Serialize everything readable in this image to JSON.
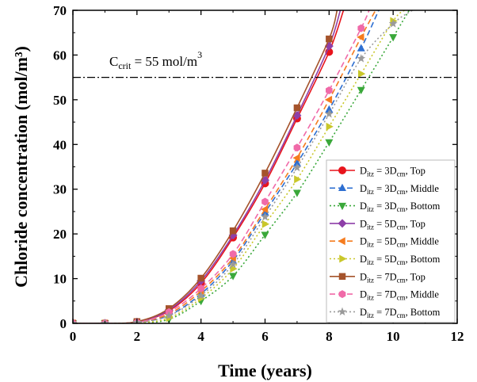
{
  "chart_data": {
    "type": "line",
    "xlabel": "Time (years)",
    "ylabel": "Chloride concentration (mol/m³)",
    "xlim": [
      0,
      12
    ],
    "ylim": [
      0,
      70
    ],
    "xticks": [
      0,
      2,
      4,
      6,
      8,
      10,
      12
    ],
    "yticks": [
      0,
      10,
      20,
      30,
      40,
      50,
      60,
      70
    ],
    "grid": false,
    "legend_position": "right-bottom",
    "reference_line": {
      "y": 55,
      "style": "dash-dot",
      "label": {
        "prefix": "C",
        "subscript": "crit",
        "rest": " = 55 mol/m",
        "superscript": "3"
      }
    },
    "series": [
      {
        "name": {
          "base": "D",
          "sub1": "itz",
          "mid": " = 3D",
          "sub2": "cm",
          "tail": ", Top"
        },
        "color": "#e8141c",
        "marker": "circle",
        "dash": "solid",
        "x": [
          0,
          1,
          2,
          3,
          4,
          5,
          6,
          7,
          8,
          8.45
        ],
        "y": [
          0,
          0,
          0.3,
          2.8,
          9.0,
          19.2,
          31.3,
          45.8,
          60.7,
          70
        ]
      },
      {
        "name": {
          "base": "D",
          "sub1": "itz",
          "mid": " = 3D",
          "sub2": "cm",
          "tail": ", Middle"
        },
        "color": "#2e6fd1",
        "marker": "triangle-up",
        "dash": "dashed",
        "x": [
          0,
          1,
          2,
          3,
          4,
          5,
          6,
          7,
          8,
          9,
          9.55
        ],
        "y": [
          0,
          0,
          0.2,
          1.8,
          6.6,
          14.0,
          24.8,
          35.8,
          47.8,
          61.5,
          70
        ]
      },
      {
        "name": {
          "base": "D",
          "sub1": "itz",
          "mid": " = 3D",
          "sub2": "cm",
          "tail": ", Bottom"
        },
        "color": "#3aa83a",
        "marker": "triangle-down",
        "dash": "dotted",
        "x": [
          0,
          1,
          2,
          3,
          4,
          5,
          6,
          7,
          8,
          9,
          10,
          10.5
        ],
        "y": [
          0,
          0,
          0.1,
          0.9,
          5.0,
          10.6,
          19.8,
          29.2,
          40.5,
          52.2,
          64.0,
          70
        ]
      },
      {
        "name": {
          "base": "D",
          "sub1": "itz",
          "mid": " = 5D",
          "sub2": "cm",
          "tail": ", Top"
        },
        "color": "#8e3fa8",
        "marker": "diamond",
        "dash": "solid",
        "x": [
          0,
          1,
          2,
          3,
          4,
          5,
          6,
          7,
          8,
          8.35
        ],
        "y": [
          0,
          0,
          0.3,
          3.0,
          9.5,
          19.7,
          32.0,
          46.5,
          62.0,
          70
        ]
      },
      {
        "name": {
          "base": "D",
          "sub1": "itz",
          "mid": " = 5D",
          "sub2": "cm",
          "tail": ", Middle"
        },
        "color": "#f57c1f",
        "marker": "triangle-left",
        "dash": "dashed",
        "x": [
          0,
          1,
          2,
          3,
          4,
          5,
          6,
          7,
          8,
          9,
          9.45
        ],
        "y": [
          0,
          0,
          0.2,
          2.1,
          7.2,
          14.6,
          25.5,
          37.0,
          50.0,
          64.0,
          70
        ]
      },
      {
        "name": {
          "base": "D",
          "sub1": "itz",
          "mid": " = 5D",
          "sub2": "cm",
          "tail": ", Bottom"
        },
        "color": "#c9c72a",
        "marker": "triangle-right",
        "dash": "dotted",
        "x": [
          0,
          1,
          2,
          3,
          4,
          5,
          6,
          7,
          8,
          9,
          10,
          10.35
        ],
        "y": [
          0,
          0,
          0.1,
          1.2,
          5.6,
          12.2,
          22.2,
          32.2,
          44.0,
          55.8,
          67.6,
          70
        ]
      },
      {
        "name": {
          "base": "D",
          "sub1": "itz",
          "mid": " = 7D",
          "sub2": "cm",
          "tail": ", Top"
        },
        "color": "#a5532b",
        "marker": "square",
        "dash": "solid",
        "x": [
          0,
          1,
          2,
          3,
          4,
          5,
          6,
          7,
          8,
          8.25
        ],
        "y": [
          0,
          0,
          0.4,
          3.3,
          10.1,
          20.7,
          33.6,
          48.2,
          63.6,
          70
        ]
      },
      {
        "name": {
          "base": "D",
          "sub1": "itz",
          "mid": " = 7D",
          "sub2": "cm",
          "tail": ", Middle"
        },
        "color": "#f06aa8",
        "marker": "hexagon",
        "dash": "dashed",
        "x": [
          0,
          1,
          2,
          3,
          4,
          5,
          6,
          7,
          8,
          9,
          9.25
        ],
        "y": [
          0,
          0,
          0.2,
          2.5,
          7.8,
          15.5,
          27.2,
          39.3,
          52.1,
          66.0,
          70
        ]
      },
      {
        "name": {
          "base": "D",
          "sub1": "itz",
          "mid": " = 7D",
          "sub2": "cm",
          "tail": ", Bottom"
        },
        "color": "#9a9a9a",
        "marker": "star",
        "dash": "dotted",
        "x": [
          0,
          1,
          2,
          3,
          4,
          5,
          6,
          7,
          8,
          9,
          10,
          10.6
        ],
        "y": [
          0,
          0,
          0.2,
          1.7,
          6.2,
          13.2,
          23.8,
          34.8,
          46.8,
          59.2,
          67.0,
          70
        ]
      }
    ]
  }
}
